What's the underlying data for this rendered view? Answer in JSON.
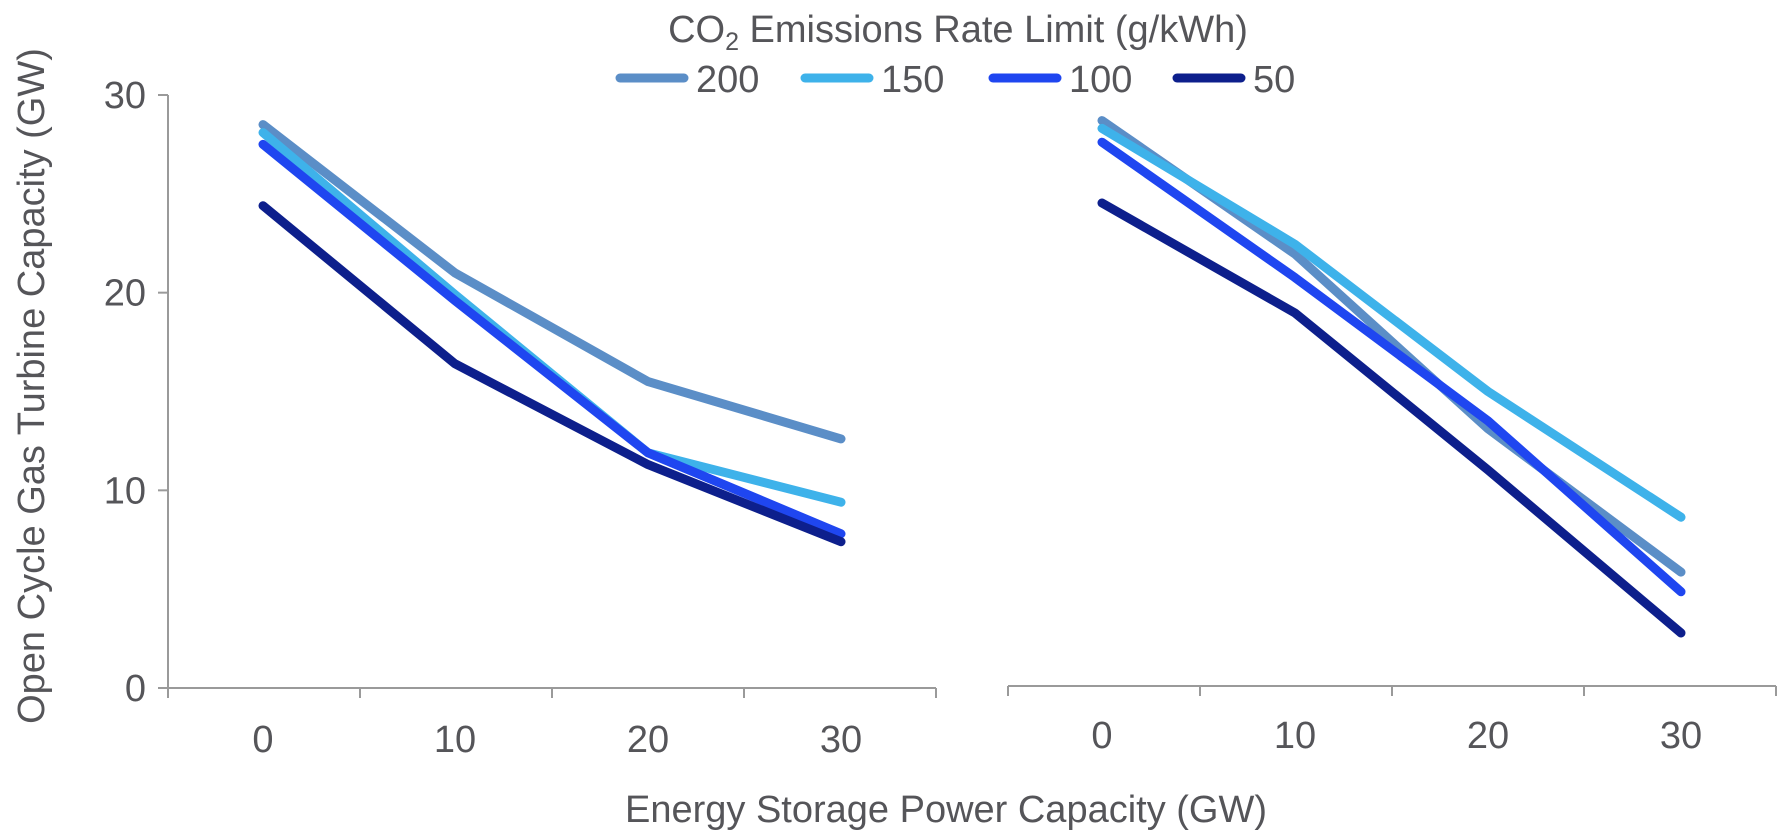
{
  "legend": {
    "title_main": "CO",
    "title_sub": "2",
    "title_rest": " Emissions Rate Limit (g/kWh)",
    "entries": [
      "200",
      "150",
      "100",
      "50"
    ]
  },
  "axes": {
    "ylabel": "Open Cycle Gas Turbine Capacity (GW)",
    "xlabel": "Energy Storage Power Capacity (GW)"
  },
  "colors": {
    "s200": "#5b8ec7",
    "s150": "#3eb2ea",
    "s100": "#1f46f0",
    "s50": "#0d1f8c",
    "axis": "#9a9a9a",
    "text": "#555559"
  },
  "chart_data": [
    {
      "type": "line",
      "x": [
        0,
        10,
        20,
        30
      ],
      "xticks": [
        "0",
        "10",
        "20",
        "30"
      ],
      "yticks": [
        "0",
        "10",
        "20",
        "30"
      ],
      "ylim": [
        0,
        30
      ],
      "xlabel": "Energy Storage Power Capacity (GW)",
      "ylabel": "Open Cycle Gas Turbine Capacity (GW)",
      "legend_title": "CO2 Emissions Rate Limit (g/kWh)",
      "series": [
        {
          "name": "200",
          "values": [
            28.5,
            21.0,
            15.5,
            12.6
          ]
        },
        {
          "name": "150",
          "values": [
            28.1,
            19.9,
            11.9,
            9.4
          ]
        },
        {
          "name": "100",
          "values": [
            27.5,
            19.6,
            11.9,
            7.8
          ]
        },
        {
          "name": "50",
          "values": [
            24.4,
            16.4,
            11.3,
            7.4
          ]
        }
      ]
    },
    {
      "type": "line",
      "x": [
        0,
        10,
        20,
        30
      ],
      "xticks": [
        "0",
        "10",
        "20",
        "30"
      ],
      "ylim": [
        0,
        30
      ],
      "series": [
        {
          "name": "200",
          "values": [
            28.8,
            22.0,
            13.1,
            5.8
          ]
        },
        {
          "name": "150",
          "values": [
            28.4,
            22.5,
            15.0,
            8.6
          ]
        },
        {
          "name": "100",
          "values": [
            27.7,
            20.8,
            13.5,
            4.8
          ]
        },
        {
          "name": "50",
          "values": [
            24.6,
            19.0,
            11.0,
            2.7
          ]
        }
      ]
    }
  ]
}
